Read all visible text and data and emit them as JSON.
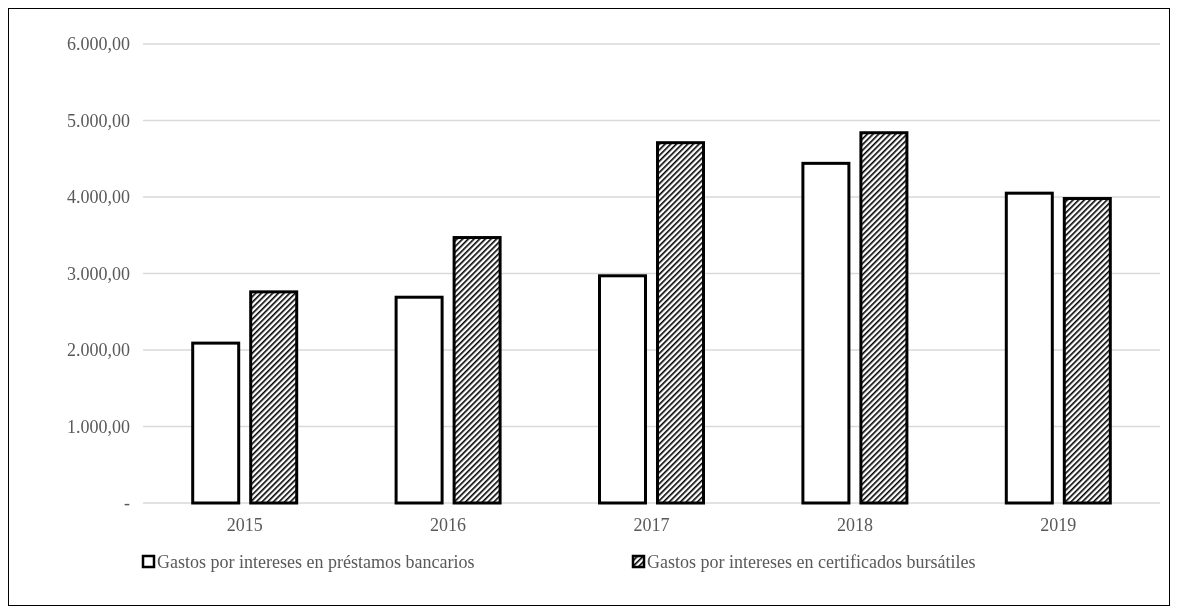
{
  "chart_data": {
    "type": "bar",
    "categories": [
      "2015",
      "2016",
      "2017",
      "2018",
      "2019"
    ],
    "series": [
      {
        "name": "Gastos por intereses en préstamos bancarios",
        "color": "#ffffff",
        "values": [
          2090,
          2690,
          2970,
          4440,
          4050
        ]
      },
      {
        "name": "Gastos por intereses en certificados bursátiles",
        "color": "#000000",
        "values": [
          2760,
          3470,
          4710,
          4840,
          3980
        ]
      }
    ],
    "ylim": [
      0,
      6000
    ],
    "yticks": [
      {
        "value": 0,
        "label": "-"
      },
      {
        "value": 1000,
        "label": "1.000,00"
      },
      {
        "value": 2000,
        "label": "2.000,00"
      },
      {
        "value": 3000,
        "label": "3.000,00"
      },
      {
        "value": 4000,
        "label": "4.000,00"
      },
      {
        "value": 5000,
        "label": "5.000,00"
      },
      {
        "value": 6000,
        "label": "6.000,00"
      }
    ],
    "grid": "y",
    "legend": "bottom"
  }
}
